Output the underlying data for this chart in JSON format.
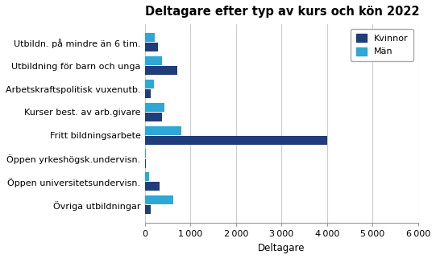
{
  "title": "Deltagare efter typ av kurs och kön 2022",
  "categories": [
    "Utbildn. på mindre än 6 tim.",
    "Utbildning för barn och unga",
    "Arbetskraftspolitisk vuxenutb.",
    "Kurser best. av arb.givare",
    "Fritt bildningsarbete",
    "Öppen yrkeshögsk.undervisn.",
    "Öppen universitetsundervisn.",
    "Övriga utbildningar"
  ],
  "kvinnor": [
    280,
    700,
    130,
    380,
    4000,
    10,
    320,
    130
  ],
  "man": [
    220,
    380,
    200,
    430,
    800,
    20,
    80,
    620
  ],
  "color_kvinnor": "#1F3D7A",
  "color_man": "#2EA8D5",
  "xlabel": "Deltagare",
  "xlim": [
    0,
    6000
  ],
  "xticks": [
    0,
    1000,
    2000,
    3000,
    4000,
    5000,
    6000
  ],
  "legend_labels": [
    "Kvinnor",
    "Män"
  ],
  "title_fontsize": 10.5,
  "axis_fontsize": 8.5,
  "tick_fontsize": 8
}
